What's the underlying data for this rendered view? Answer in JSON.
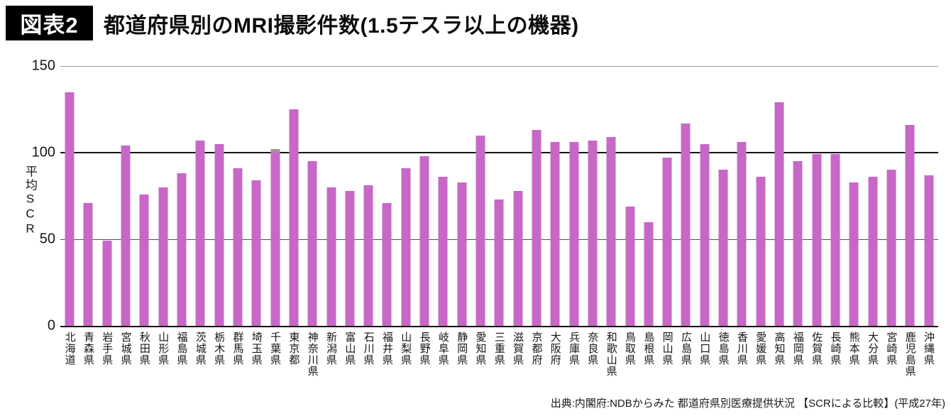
{
  "header": {
    "tag": "図表2",
    "title": "都道府県別のMRI撮影件数(1.5テスラ以上の機器)"
  },
  "source": "出典:内閣府:NDBからみた 都道府県別医療提供状況 【SCRによる比較】(平成27年)",
  "chart_data": {
    "type": "bar",
    "title": "都道府県別のMRI撮影件数(1.5テスラ以上の機器)",
    "xlabel": "",
    "ylabel": "平均SCR",
    "ylim": [
      0,
      150
    ],
    "y_ticks": [
      150,
      100,
      50,
      0
    ],
    "grid": "horizontal",
    "legend": "none",
    "reference_line_y": 100,
    "bar_color": "#c768c7",
    "categories": [
      "北海道",
      "青森県",
      "岩手県",
      "宮城県",
      "秋田県",
      "山形県",
      "福島県",
      "茨城県",
      "栃木県",
      "群馬県",
      "埼玉県",
      "千葉県",
      "東京都",
      "神奈川県",
      "新潟県",
      "富山県",
      "石川県",
      "福井県",
      "山梨県",
      "長野県",
      "岐阜県",
      "静岡県",
      "愛知県",
      "三重県",
      "滋賀県",
      "京都府",
      "大阪府",
      "兵庫県",
      "奈良県",
      "和歌山県",
      "鳥取県",
      "島根県",
      "岡山県",
      "広島県",
      "山口県",
      "徳島県",
      "香川県",
      "愛媛県",
      "高知県",
      "福岡県",
      "佐賀県",
      "長崎県",
      "熊本県",
      "大分県",
      "宮崎県",
      "鹿児島県",
      "沖縄県"
    ],
    "values": [
      135,
      71,
      49,
      104,
      76,
      80,
      88,
      107,
      105,
      91,
      84,
      102,
      125,
      95,
      80,
      78,
      81,
      71,
      91,
      98,
      86,
      83,
      110,
      73,
      78,
      113,
      106,
      106,
      107,
      109,
      69,
      60,
      97,
      117,
      105,
      90,
      106,
      86,
      129,
      95,
      99,
      99,
      83,
      86,
      90,
      116,
      87
    ],
    "gray_tip": {
      "category": "千葉県",
      "units": 1.8,
      "color": "#a78fa0"
    }
  }
}
